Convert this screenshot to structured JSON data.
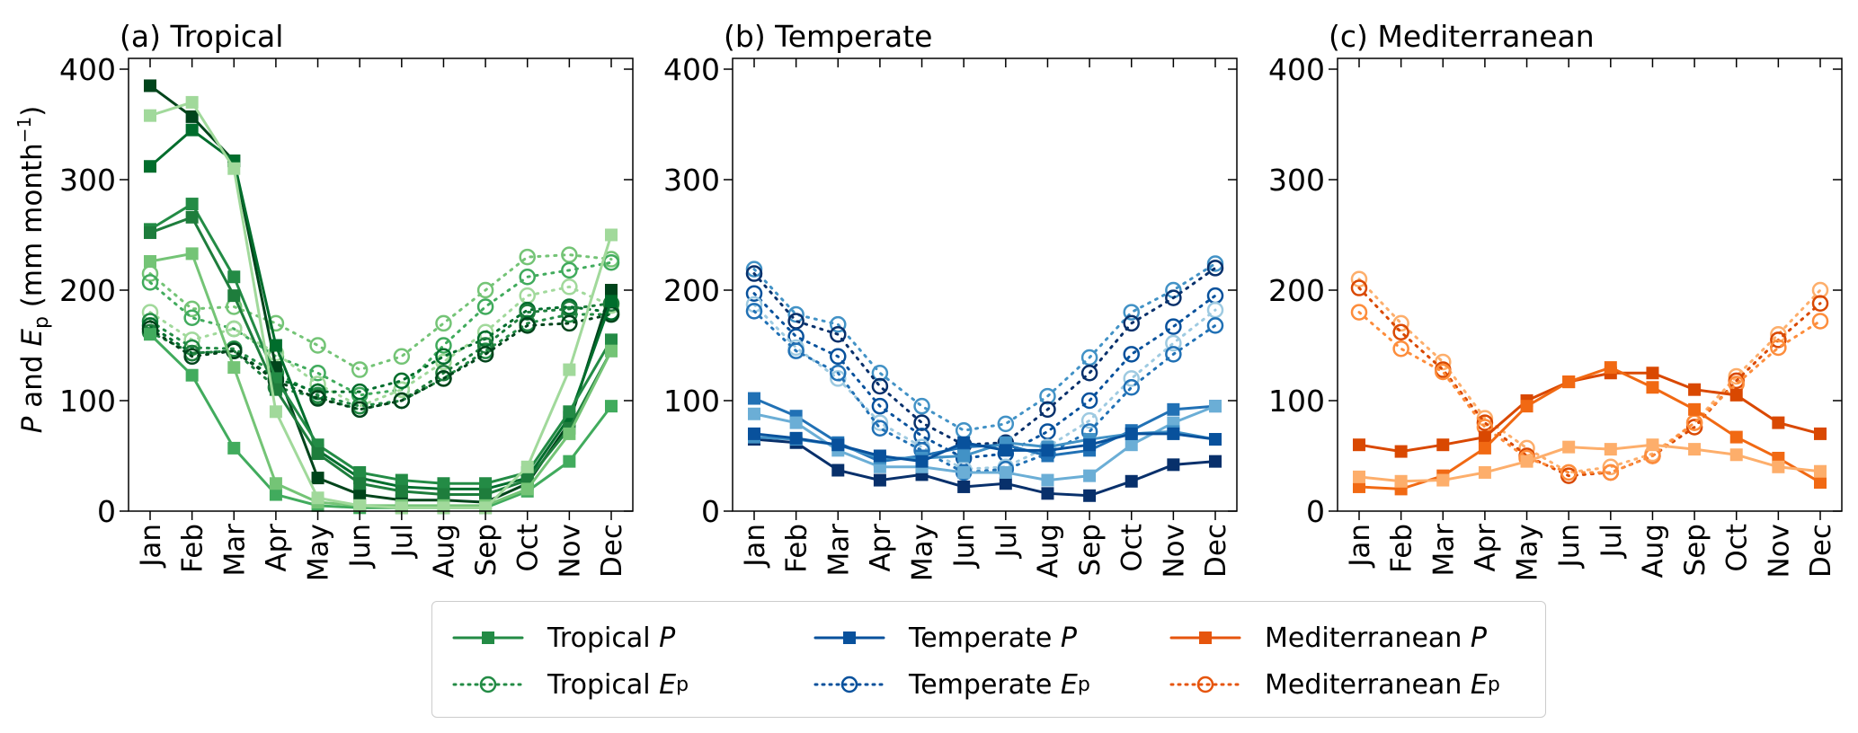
{
  "y_label": {
    "p": "P",
    "and": " and ",
    "e": "E",
    "sub": "p",
    "unit": " (mm month",
    "exp": "−1",
    "close": ")"
  },
  "legend": [
    {
      "name": "Tropical",
      "var": "P",
      "sub": "",
      "color": "#238b45",
      "style": "solid"
    },
    {
      "name": "Tropical",
      "var": "E",
      "sub": "p",
      "color": "#238b45",
      "style": "dotted"
    },
    {
      "name": "Temperate",
      "var": "P",
      "sub": "",
      "color": "#08519c",
      "style": "solid"
    },
    {
      "name": "Temperate",
      "var": "E",
      "sub": "p",
      "color": "#08519c",
      "style": "dotted"
    },
    {
      "name": "Mediterranean",
      "var": "P",
      "sub": "",
      "color": "#e6550d",
      "style": "solid"
    },
    {
      "name": "Mediterranean",
      "var": "E",
      "sub": "p",
      "color": "#e6550d",
      "style": "dotted"
    }
  ],
  "chart_data": [
    {
      "type": "line",
      "title": "(a) Tropical",
      "categories": [
        "Jan",
        "Feb",
        "Mar",
        "Apr",
        "May",
        "Jun",
        "Jul",
        "Aug",
        "Sep",
        "Oct",
        "Nov",
        "Dec"
      ],
      "ylim": [
        0,
        400
      ],
      "yticks": [
        0,
        100,
        200,
        300,
        400
      ],
      "P": [
        {
          "color": "#00441b",
          "values": [
            385,
            357,
            317,
            130,
            30,
            15,
            10,
            10,
            8,
            25,
            80,
            200
          ]
        },
        {
          "color": "#006d2c",
          "values": [
            312,
            345,
            317,
            150,
            55,
            30,
            22,
            20,
            20,
            30,
            85,
            190
          ]
        },
        {
          "color": "#238b45",
          "values": [
            255,
            278,
            212,
            120,
            60,
            35,
            28,
            25,
            25,
            35,
            90,
            155
          ]
        },
        {
          "color": "#1e7d3c",
          "values": [
            252,
            266,
            195,
            110,
            52,
            25,
            18,
            15,
            15,
            28,
            75,
            145
          ]
        },
        {
          "color": "#41ab5d",
          "values": [
            160,
            123,
            57,
            15,
            5,
            3,
            3,
            3,
            3,
            18,
            45,
            95
          ]
        },
        {
          "color": "#74c476",
          "values": [
            226,
            233,
            130,
            25,
            8,
            5,
            5,
            5,
            5,
            20,
            70,
            145
          ]
        },
        {
          "color": "#a1d99b",
          "values": [
            358,
            370,
            310,
            90,
            12,
            5,
            3,
            3,
            3,
            40,
            128,
            250
          ]
        }
      ],
      "Ep": [
        {
          "color": "#74c476",
          "values": [
            215,
            183,
            185,
            170,
            150,
            128,
            140,
            170,
            200,
            230,
            232,
            228
          ]
        },
        {
          "color": "#41ab5d",
          "values": [
            207,
            175,
            165,
            140,
            125,
            105,
            110,
            150,
            185,
            212,
            218,
            225
          ]
        },
        {
          "color": "#a1d99b",
          "values": [
            180,
            155,
            165,
            143,
            115,
            95,
            110,
            135,
            162,
            195,
            203,
            186
          ]
        },
        {
          "color": "#238b45",
          "values": [
            172,
            148,
            147,
            125,
            105,
            95,
            100,
            120,
            145,
            170,
            178,
            178
          ]
        },
        {
          "color": "#006d2c",
          "values": [
            168,
            143,
            145,
            120,
            108,
            108,
            118,
            140,
            156,
            182,
            185,
            180
          ]
        },
        {
          "color": "#1e7d3c",
          "values": [
            162,
            143,
            145,
            112,
            103,
            92,
            100,
            125,
            150,
            180,
            183,
            188
          ]
        },
        {
          "color": "#00441b",
          "values": [
            165,
            140,
            145,
            118,
            102,
            92,
            100,
            120,
            142,
            168,
            170,
            178
          ]
        }
      ]
    },
    {
      "type": "line",
      "title": "(b) Temperate",
      "categories": [
        "Jan",
        "Feb",
        "Mar",
        "Apr",
        "May",
        "Jun",
        "Jul",
        "Aug",
        "Sep",
        "Oct",
        "Nov",
        "Dec"
      ],
      "ylim": [
        0,
        400
      ],
      "yticks": [
        0,
        100,
        200,
        300,
        400
      ],
      "P": [
        {
          "color": "#2171b5",
          "values": [
            102,
            86,
            62,
            45,
            50,
            58,
            60,
            50,
            55,
            73,
            92,
            95
          ]
        },
        {
          "color": "#08306b",
          "values": [
            65,
            62,
            37,
            28,
            33,
            22,
            25,
            16,
            14,
            27,
            42,
            45
          ]
        },
        {
          "color": "#6baed6",
          "values": [
            88,
            80,
            55,
            40,
            40,
            35,
            35,
            28,
            32,
            60,
            80,
            95
          ]
        },
        {
          "color": "#4292c6",
          "values": [
            67,
            65,
            60,
            48,
            48,
            50,
            62,
            58,
            65,
            70,
            72,
            65
          ]
        },
        {
          "color": "#08519c",
          "values": [
            70,
            66,
            60,
            50,
            45,
            62,
            55,
            55,
            60,
            70,
            70,
            65
          ]
        }
      ],
      "Ep": [
        {
          "color": "#4292c6",
          "values": [
            219,
            178,
            169,
            125,
            95,
            73,
            79,
            104,
            139,
            180,
            200,
            224
          ]
        },
        {
          "color": "#08306b",
          "values": [
            215,
            172,
            160,
            113,
            80,
            60,
            62,
            92,
            125,
            170,
            193,
            220
          ]
        },
        {
          "color": "#08519c",
          "values": [
            197,
            158,
            140,
            95,
            68,
            48,
            52,
            72,
            100,
            142,
            167,
            195
          ]
        },
        {
          "color": "#9ecae1",
          "values": [
            187,
            148,
            120,
            80,
            58,
            38,
            40,
            58,
            82,
            120,
            152,
            182
          ]
        },
        {
          "color": "#2171b5",
          "values": [
            181,
            145,
            125,
            75,
            55,
            35,
            38,
            52,
            72,
            112,
            142,
            168
          ]
        }
      ]
    },
    {
      "type": "line",
      "title": "(c) Mediterranean",
      "categories": [
        "Jan",
        "Feb",
        "Mar",
        "Apr",
        "May",
        "Jun",
        "Jul",
        "Aug",
        "Sep",
        "Oct",
        "Nov",
        "Dec"
      ],
      "ylim": [
        0,
        400
      ],
      "yticks": [
        0,
        100,
        200,
        300,
        400
      ],
      "P": [
        {
          "color": "#d94801",
          "values": [
            60,
            54,
            60,
            67,
            100,
            117,
            125,
            125,
            110,
            105,
            80,
            70
          ]
        },
        {
          "color": "#f16913",
          "values": [
            22,
            20,
            32,
            57,
            95,
            117,
            130,
            112,
            92,
            67,
            48,
            26
          ]
        },
        {
          "color": "#fdae6b",
          "values": [
            31,
            27,
            28,
            35,
            45,
            58,
            56,
            60,
            56,
            51,
            40,
            36
          ]
        }
      ],
      "Ep": [
        {
          "color": "#fdae6b",
          "values": [
            210,
            170,
            135,
            84,
            57,
            35,
            40,
            52,
            80,
            122,
            160,
            200
          ]
        },
        {
          "color": "#d94801",
          "values": [
            202,
            162,
            128,
            80,
            50,
            32,
            35,
            50,
            76,
            118,
            155,
            188
          ]
        },
        {
          "color": "#fd8d3c",
          "values": [
            180,
            147,
            126,
            76,
            48,
            35,
            35,
            50,
            80,
            115,
            148,
            172
          ]
        }
      ]
    }
  ]
}
